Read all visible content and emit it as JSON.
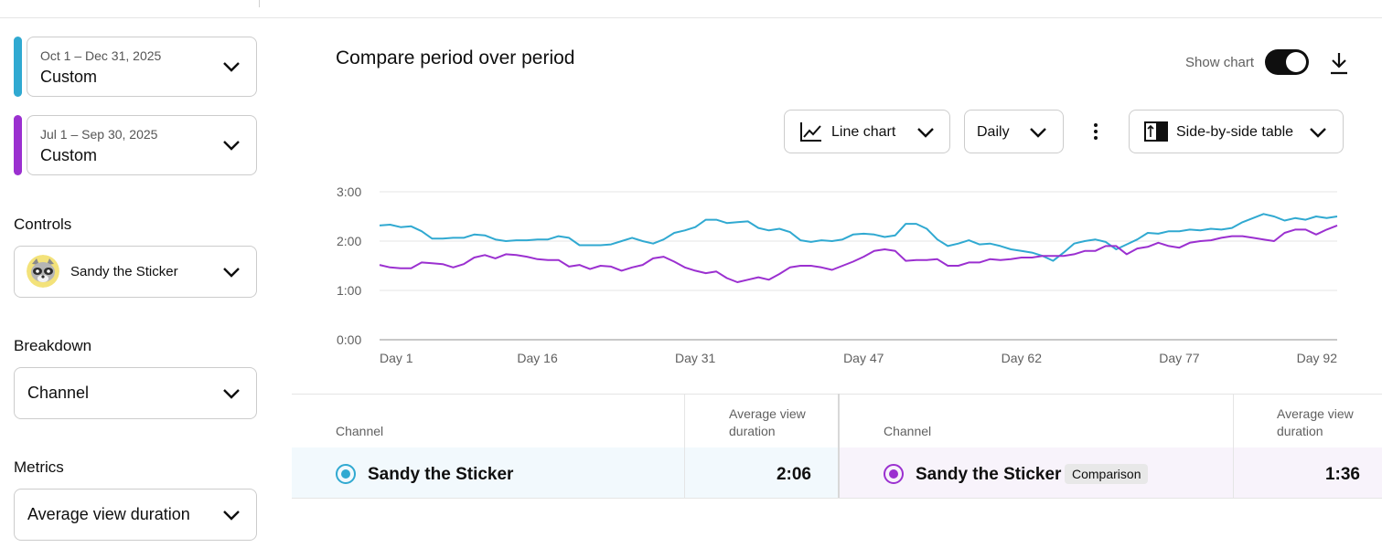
{
  "sidebar": {
    "period1": {
      "range": "Oct 1 – Dec 31, 2025",
      "kind": "Custom",
      "color": "#30a9d1"
    },
    "period2": {
      "range": "Jul 1 – Sep 30, 2025",
      "kind": "Custom",
      "color": "#9b30d0"
    },
    "controls_label": "Controls",
    "controls_value": "Sandy the Sticker",
    "breakdown_label": "Breakdown",
    "breakdown_value": "Channel",
    "metrics_label": "Metrics",
    "metrics_value": "Average view duration"
  },
  "main": {
    "title": "Compare period over period",
    "show_chart_label": "Show chart",
    "show_chart_on": true,
    "chart_type_label": "Line chart",
    "interval_label": "Daily",
    "table_mode_label": "Side-by-side table"
  },
  "chart_data": {
    "type": "line",
    "x_tick_labels": [
      "Day 1",
      "Day 16",
      "Day 31",
      "Day 47",
      "Day 62",
      "Day 77",
      "Day 92"
    ],
    "x_tick_values": [
      1,
      16,
      31,
      47,
      62,
      77,
      92
    ],
    "y_tick_labels": [
      "0:00",
      "1:00",
      "2:00",
      "3:00"
    ],
    "y_unit_seconds": [
      0,
      60,
      120,
      180
    ],
    "ylim": [
      0,
      180
    ],
    "xlim": [
      1,
      92
    ],
    "grid": true,
    "series": [
      {
        "color": "#30a9d1",
        "values": [
          139,
          140,
          137,
          138,
          132,
          123,
          123,
          124,
          124,
          128,
          127,
          122,
          120,
          121,
          121,
          122,
          122,
          126,
          124,
          115,
          115,
          115,
          116,
          120,
          124,
          120,
          117,
          122,
          130,
          133,
          137,
          146,
          146,
          142,
          143,
          144,
          136,
          133,
          135,
          131,
          121,
          119,
          121,
          120,
          122,
          128,
          129,
          128,
          125,
          127,
          141,
          141,
          135,
          122,
          114,
          117,
          121,
          116,
          117,
          114,
          110,
          108,
          106,
          102,
          96,
          106,
          117,
          120,
          122,
          119,
          110,
          116,
          122,
          130,
          129,
          132,
          132,
          134,
          133,
          135,
          134,
          136,
          143,
          148,
          153,
          150,
          145,
          148,
          146,
          150,
          148,
          150
        ]
      },
      {
        "color": "#9b30d0",
        "values": [
          91,
          88,
          87,
          87,
          94,
          93,
          92,
          88,
          92,
          100,
          103,
          99,
          104,
          103,
          101,
          98,
          97,
          97,
          89,
          91,
          86,
          90,
          89,
          84,
          88,
          91,
          99,
          101,
          95,
          88,
          84,
          81,
          83,
          75,
          70,
          73,
          76,
          73,
          80,
          88,
          90,
          90,
          88,
          85,
          90,
          95,
          101,
          108,
          110,
          108,
          96,
          97,
          97,
          98,
          90,
          90,
          94,
          94,
          98,
          97,
          98,
          100,
          100,
          102,
          102,
          102,
          104,
          108,
          108,
          114,
          114,
          104,
          111,
          113,
          118,
          114,
          112,
          118,
          120,
          121,
          124,
          126,
          126,
          124,
          122,
          120,
          130,
          134,
          134,
          128,
          134,
          139
        ]
      }
    ]
  },
  "table": {
    "left": {
      "col_name": "Channel",
      "col_metric_line1": "Average view",
      "col_metric_line2": "duration",
      "row_name": "Sandy the Sticker",
      "row_value": "2:06"
    },
    "right": {
      "col_name": "Channel",
      "col_metric_line1": "Average view",
      "col_metric_line2": "duration",
      "row_name": "Sandy the Sticker",
      "badge": "Comparison",
      "row_value": "1:36"
    }
  }
}
